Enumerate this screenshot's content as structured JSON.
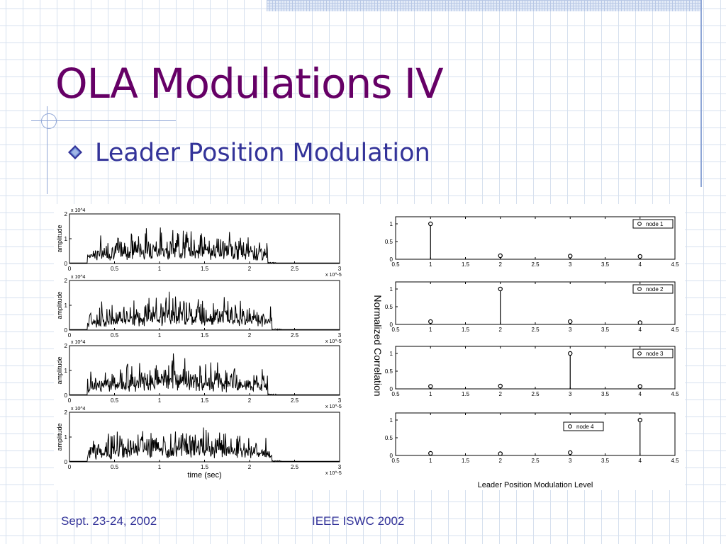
{
  "slide": {
    "title": "OLA Modulations IV",
    "bullet": "Leader Position Modulation",
    "footer_left": "Sept. 23-24, 2002",
    "footer_center": "IEEE ISWC 2002"
  },
  "colors": {
    "title": "#660066",
    "text": "#333399",
    "grid": "#d6e0ee",
    "accent_line": "#8fa6d6"
  },
  "chart_data": [
    {
      "type": "line",
      "panel": "node 1 signal",
      "ylabel": "amplitude",
      "y_exponent": "x 10^4",
      "ylim": [
        0,
        2
      ],
      "yticks": [
        "0",
        "1",
        "2"
      ],
      "xlim": [
        0,
        3
      ],
      "xticks": [
        "0",
        "0.5",
        "1",
        "1.5",
        "2",
        "2.5",
        "3"
      ],
      "x_exponent": "x 10^-5",
      "signal_end": 2.2
    },
    {
      "type": "line",
      "panel": "node 2 signal",
      "ylabel": "amplitude",
      "y_exponent": "x 10^4",
      "ylim": [
        0,
        2
      ],
      "yticks": [
        "0",
        "1",
        "2"
      ],
      "xlim": [
        0,
        3
      ],
      "xticks": [
        "0",
        "0.5",
        "1",
        "1.5",
        "2",
        "2.5",
        "3"
      ],
      "x_exponent": "x 10^-5",
      "signal_end": 2.25
    },
    {
      "type": "line",
      "panel": "node 3 signal",
      "ylabel": "amplitude",
      "y_exponent": "x 10^4",
      "ylim": [
        0,
        2
      ],
      "yticks": [
        "0",
        "1",
        "2"
      ],
      "xlim": [
        0,
        3
      ],
      "xticks": [
        "0",
        "0.5",
        "1",
        "1.5",
        "2",
        "2.5",
        "3"
      ],
      "x_exponent": "x 10^-5",
      "signal_end": 2.2
    },
    {
      "type": "line",
      "panel": "node 4 signal",
      "ylabel": "amplitude",
      "y_exponent": "x 10^4",
      "ylim": [
        0,
        2
      ],
      "yticks": [
        "0",
        "1",
        "2"
      ],
      "xlim": [
        0,
        3
      ],
      "xticks": [
        "0",
        "0.5",
        "1",
        "1.5",
        "2",
        "2.5",
        "3"
      ],
      "xlabel": "time (sec)",
      "x_exponent": "x 10^-5",
      "signal_end": 2.25
    },
    {
      "type": "stem",
      "shared_ylabel": "Normalized Correlation",
      "shared_xlabel": "Leader Position Modulation Level",
      "xlim": [
        0.5,
        4.5
      ],
      "xticks": [
        "0.5",
        "1",
        "1.5",
        "2",
        "2.5",
        "3",
        "3.5",
        "4",
        "4.5"
      ],
      "ylim": [
        0,
        1.2
      ],
      "yticks": [
        "0",
        "0.5",
        "1"
      ],
      "x": [
        1,
        2,
        3,
        4
      ],
      "series": [
        {
          "name": "node 1",
          "values": [
            1.0,
            0.1,
            0.09,
            0.08
          ]
        },
        {
          "name": "node 2",
          "values": [
            0.08,
            1.0,
            0.08,
            0.05
          ]
        },
        {
          "name": "node 3",
          "values": [
            0.07,
            0.08,
            1.0,
            0.07
          ]
        },
        {
          "name": "node 4",
          "values": [
            0.06,
            0.05,
            0.08,
            1.0
          ]
        }
      ]
    }
  ]
}
